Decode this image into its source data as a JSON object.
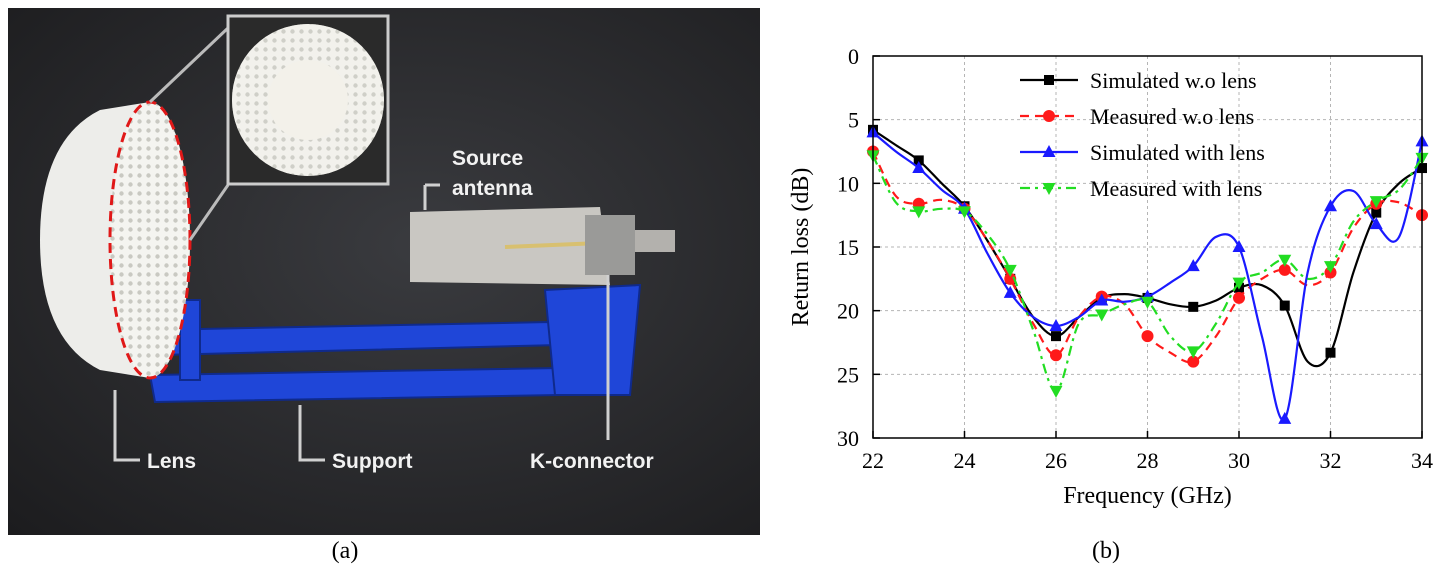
{
  "photo": {
    "labels": {
      "source_antenna": [
        "Source",
        "antenna"
      ],
      "lens": "Lens",
      "support": "Support",
      "connector": "K-connector"
    },
    "caption": "(a)"
  },
  "chart_data": {
    "type": "line",
    "xlabel": "Frequency (GHz)",
    "ylabel": "Return loss (dB)",
    "x": [
      22,
      22.5,
      23,
      23.5,
      24,
      24.5,
      25,
      25.5,
      26,
      26.5,
      27,
      27.5,
      28,
      28.5,
      29,
      29.5,
      30,
      30.5,
      31,
      31.5,
      32,
      32.5,
      33,
      33.5,
      34
    ],
    "series": [
      {
        "name": "Simulated w.o lens",
        "color": "#000000",
        "dash": "solid",
        "marker": "square",
        "values": [
          5.8,
          7,
          8.2,
          10,
          11.8,
          14.5,
          17.5,
          20.5,
          22,
          20.5,
          19,
          18.7,
          19,
          19.5,
          19.7,
          19.2,
          18.2,
          18,
          19.6,
          24,
          23.3,
          17,
          12.3,
          10,
          8.8
        ]
      },
      {
        "name": "Measured w.o lens",
        "color": "#ff1a1a",
        "dash": "dashed",
        "marker": "circle",
        "values": [
          7.5,
          11,
          11.6,
          11.3,
          12,
          14.5,
          17.5,
          21,
          23.5,
          20.5,
          18.9,
          19.5,
          22,
          23.3,
          24,
          22,
          19,
          17.5,
          16.8,
          18,
          17,
          13.5,
          11.6,
          11.5,
          12.5
        ]
      },
      {
        "name": "Simulated with lens",
        "color": "#1a1aff",
        "dash": "solid",
        "marker": "triangle-up",
        "values": [
          6,
          7.5,
          8.8,
          10.5,
          12,
          15.5,
          18.6,
          20.5,
          21.2,
          20.5,
          19.2,
          19.3,
          18.9,
          17.8,
          16.5,
          14.2,
          15,
          22,
          28.5,
          17,
          11.8,
          10.6,
          13.2,
          14.2,
          6.7
        ]
      },
      {
        "name": "Measured with lens",
        "color": "#22dd22",
        "dash": "dashdot",
        "marker": "triangle-down",
        "values": [
          7.8,
          11.5,
          12.2,
          12,
          12.2,
          14,
          16.8,
          21.5,
          26.3,
          21,
          20.3,
          19.5,
          19.3,
          22,
          23.2,
          21,
          17.8,
          17,
          16,
          17.5,
          16.5,
          13,
          11.4,
          10.5,
          8
        ]
      }
    ],
    "xlim": [
      22,
      34
    ],
    "xticks": [
      22,
      24,
      26,
      28,
      30,
      32,
      34
    ],
    "ylim": [
      30,
      0
    ],
    "yticks": [
      0,
      5,
      10,
      15,
      20,
      25,
      30
    ],
    "grid": true,
    "legend": "top"
  },
  "caption_b": "(b)"
}
